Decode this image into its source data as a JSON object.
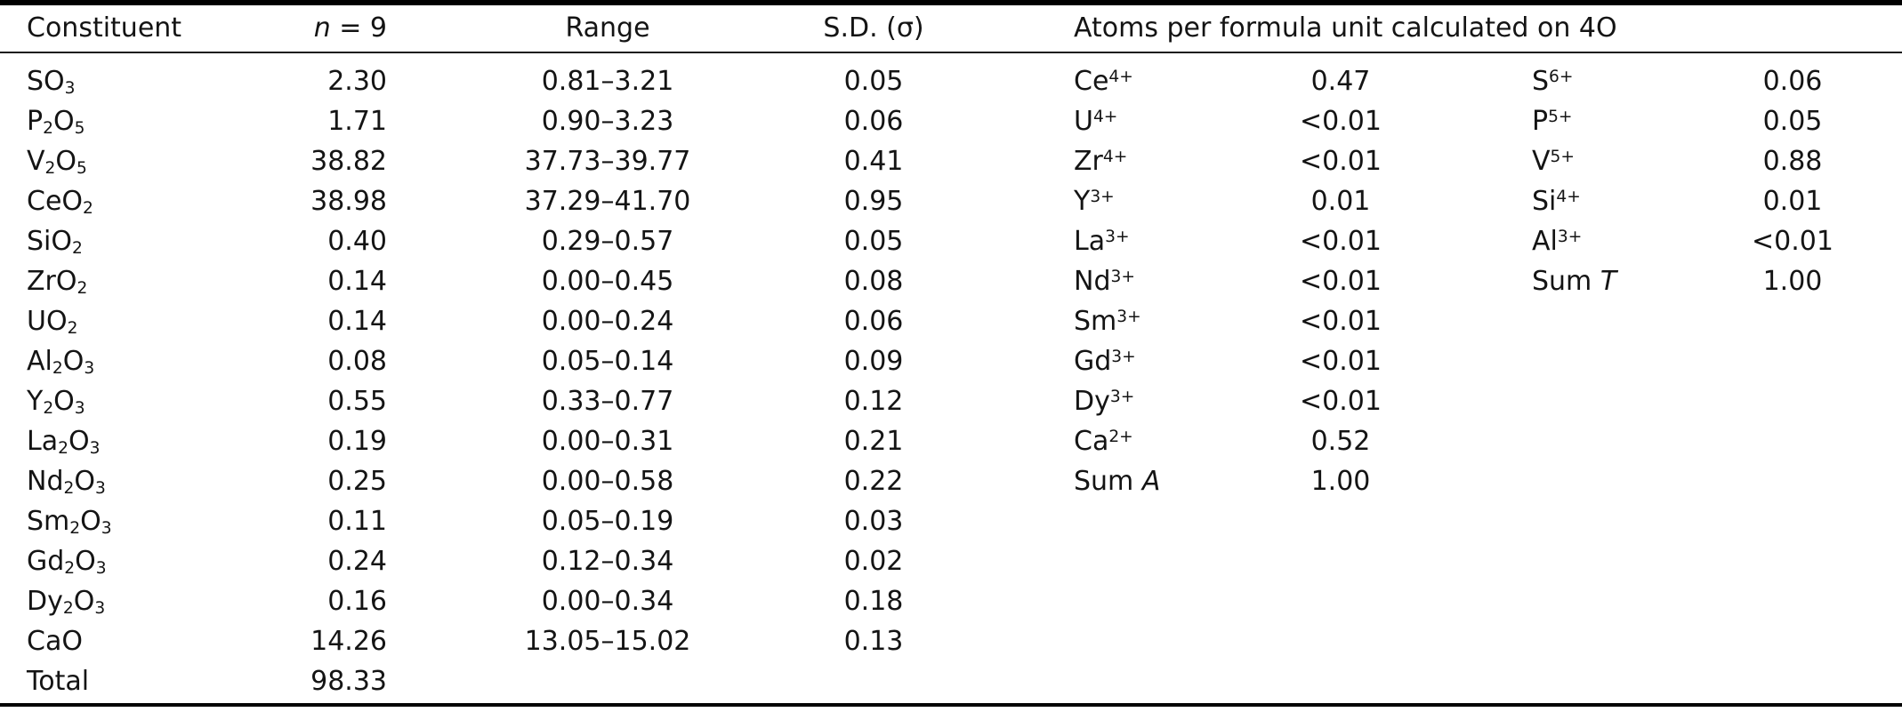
{
  "header": {
    "constituent": "Constituent",
    "n": [
      [
        "i",
        "n"
      ],
      [
        "t",
        " = 9"
      ]
    ],
    "range": "Range",
    "sd": "S.D. (σ)",
    "apfu": "Atoms per formula unit calculated on 4O"
  },
  "rows": [
    {
      "oxide": [
        [
          "t",
          "SO"
        ],
        [
          "sub",
          "3"
        ]
      ],
      "mean": "2.30",
      "range": "0.81–3.21",
      "sd": "0.05",
      "a_ion": [
        [
          "t",
          "Ce"
        ],
        [
          "sup",
          "4+"
        ]
      ],
      "a_val": "0.47",
      "t_ion": [
        [
          "t",
          "S"
        ],
        [
          "sup",
          "6+"
        ]
      ],
      "t_val": "0.06"
    },
    {
      "oxide": [
        [
          "t",
          "P"
        ],
        [
          "sub",
          "2"
        ],
        [
          "t",
          "O"
        ],
        [
          "sub",
          "5"
        ]
      ],
      "mean": "1.71",
      "range": "0.90–3.23",
      "sd": "0.06",
      "a_ion": [
        [
          "t",
          "U"
        ],
        [
          "sup",
          "4+"
        ]
      ],
      "a_val": "<0.01",
      "t_ion": [
        [
          "t",
          "P"
        ],
        [
          "sup",
          "5+"
        ]
      ],
      "t_val": "0.05"
    },
    {
      "oxide": [
        [
          "t",
          "V"
        ],
        [
          "sub",
          "2"
        ],
        [
          "t",
          "O"
        ],
        [
          "sub",
          "5"
        ]
      ],
      "mean": "38.82",
      "range": "37.73–39.77",
      "sd": "0.41",
      "a_ion": [
        [
          "t",
          "Zr"
        ],
        [
          "sup",
          "4+"
        ]
      ],
      "a_val": "<0.01",
      "t_ion": [
        [
          "t",
          "V"
        ],
        [
          "sup",
          "5+"
        ]
      ],
      "t_val": "0.88"
    },
    {
      "oxide": [
        [
          "t",
          "CeO"
        ],
        [
          "sub",
          "2"
        ]
      ],
      "mean": "38.98",
      "range": "37.29–41.70",
      "sd": "0.95",
      "a_ion": [
        [
          "t",
          "Y"
        ],
        [
          "sup",
          "3+"
        ]
      ],
      "a_val": "0.01",
      "t_ion": [
        [
          "t",
          "Si"
        ],
        [
          "sup",
          "4+"
        ]
      ],
      "t_val": "0.01"
    },
    {
      "oxide": [
        [
          "t",
          "SiO"
        ],
        [
          "sub",
          "2"
        ]
      ],
      "mean": "0.40",
      "range": "0.29–0.57",
      "sd": "0.05",
      "a_ion": [
        [
          "t",
          "La"
        ],
        [
          "sup",
          "3+"
        ]
      ],
      "a_val": "<0.01",
      "t_ion": [
        [
          "t",
          "Al"
        ],
        [
          "sup",
          "3+"
        ]
      ],
      "t_val": "<0.01"
    },
    {
      "oxide": [
        [
          "t",
          "ZrO"
        ],
        [
          "sub",
          "2"
        ]
      ],
      "mean": "0.14",
      "range": "0.00–0.45",
      "sd": "0.08",
      "a_ion": [
        [
          "t",
          "Nd"
        ],
        [
          "sup",
          "3+"
        ]
      ],
      "a_val": "<0.01",
      "t_ion": [
        [
          "t",
          "Sum "
        ],
        [
          "i",
          "T"
        ]
      ],
      "t_val": "1.00"
    },
    {
      "oxide": [
        [
          "t",
          "UO"
        ],
        [
          "sub",
          "2"
        ]
      ],
      "mean": "0.14",
      "range": "0.00–0.24",
      "sd": "0.06",
      "a_ion": [
        [
          "t",
          "Sm"
        ],
        [
          "sup",
          "3+"
        ]
      ],
      "a_val": "<0.01",
      "t_ion": null,
      "t_val": null
    },
    {
      "oxide": [
        [
          "t",
          "Al"
        ],
        [
          "sub",
          "2"
        ],
        [
          "t",
          "O"
        ],
        [
          "sub",
          "3"
        ]
      ],
      "mean": "0.08",
      "range": "0.05–0.14",
      "sd": "0.09",
      "a_ion": [
        [
          "t",
          "Gd"
        ],
        [
          "sup",
          "3+"
        ]
      ],
      "a_val": "<0.01",
      "t_ion": null,
      "t_val": null
    },
    {
      "oxide": [
        [
          "t",
          "Y"
        ],
        [
          "sub",
          "2"
        ],
        [
          "t",
          "O"
        ],
        [
          "sub",
          "3"
        ]
      ],
      "mean": "0.55",
      "range": "0.33–0.77",
      "sd": "0.12",
      "a_ion": [
        [
          "t",
          "Dy"
        ],
        [
          "sup",
          "3+"
        ]
      ],
      "a_val": "<0.01",
      "t_ion": null,
      "t_val": null
    },
    {
      "oxide": [
        [
          "t",
          "La"
        ],
        [
          "sub",
          "2"
        ],
        [
          "t",
          "O"
        ],
        [
          "sub",
          "3"
        ]
      ],
      "mean": "0.19",
      "range": "0.00–0.31",
      "sd": "0.21",
      "a_ion": [
        [
          "t",
          "Ca"
        ],
        [
          "sup",
          "2+"
        ]
      ],
      "a_val": "0.52",
      "t_ion": null,
      "t_val": null
    },
    {
      "oxide": [
        [
          "t",
          "Nd"
        ],
        [
          "sub",
          "2"
        ],
        [
          "t",
          "O"
        ],
        [
          "sub",
          "3"
        ]
      ],
      "mean": "0.25",
      "range": "0.00–0.58",
      "sd": "0.22",
      "a_ion": [
        [
          "t",
          "Sum "
        ],
        [
          "i",
          "A"
        ]
      ],
      "a_val": "1.00",
      "t_ion": null,
      "t_val": null
    },
    {
      "oxide": [
        [
          "t",
          "Sm"
        ],
        [
          "sub",
          "2"
        ],
        [
          "t",
          "O"
        ],
        [
          "sub",
          "3"
        ]
      ],
      "mean": "0.11",
      "range": "0.05–0.19",
      "sd": "0.03",
      "a_ion": null,
      "a_val": null,
      "t_ion": null,
      "t_val": null
    },
    {
      "oxide": [
        [
          "t",
          "Gd"
        ],
        [
          "sub",
          "2"
        ],
        [
          "t",
          "O"
        ],
        [
          "sub",
          "3"
        ]
      ],
      "mean": "0.24",
      "range": "0.12–0.34",
      "sd": "0.02",
      "a_ion": null,
      "a_val": null,
      "t_ion": null,
      "t_val": null
    },
    {
      "oxide": [
        [
          "t",
          "Dy"
        ],
        [
          "sub",
          "2"
        ],
        [
          "t",
          "O"
        ],
        [
          "sub",
          "3"
        ]
      ],
      "mean": "0.16",
      "range": "0.00–0.34",
      "sd": "0.18",
      "a_ion": null,
      "a_val": null,
      "t_ion": null,
      "t_val": null
    },
    {
      "oxide": [
        [
          "t",
          "CaO"
        ]
      ],
      "mean": "14.26",
      "range": "13.05–15.02",
      "sd": "0.13",
      "a_ion": null,
      "a_val": null,
      "t_ion": null,
      "t_val": null
    },
    {
      "oxide": [
        [
          "t",
          "Total"
        ]
      ],
      "mean": "98.33",
      "range": null,
      "sd": null,
      "a_ion": null,
      "a_val": null,
      "t_ion": null,
      "t_val": null
    }
  ],
  "colors": {
    "text": "#141414",
    "rule": "#000000",
    "background": "#ffffff"
  }
}
